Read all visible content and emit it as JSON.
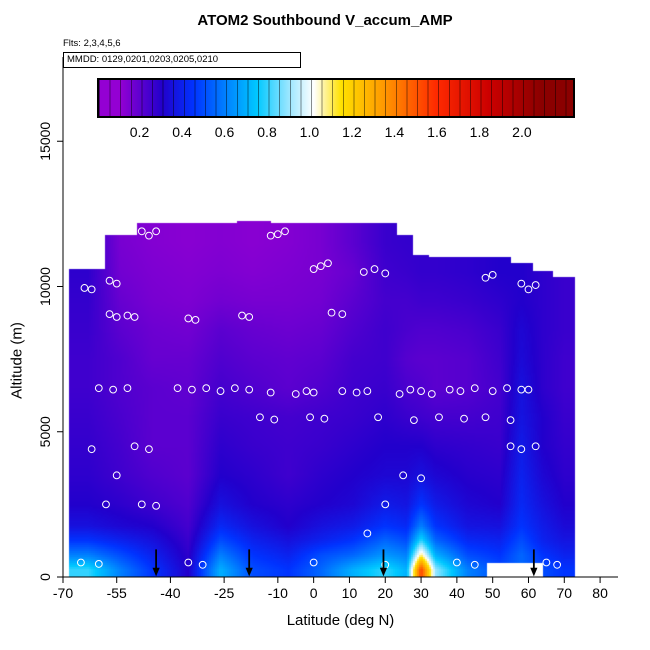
{
  "chart_data": {
    "type": "heatmap",
    "title": "ATOM2 Southbound V_accum_AMP",
    "flights_label": "Flts: 2,3,4,5,6",
    "mmdd_label": "MMDD: 0129,0201,0203,0205,0210",
    "xlabel": "Latitude (deg N)",
    "ylabel": "Altitude (m)",
    "x_ticks": [
      -70,
      -55,
      -40,
      -25,
      -10,
      0,
      10,
      20,
      30,
      40,
      50,
      60,
      70,
      80
    ],
    "y_ticks": [
      0,
      5000,
      10000,
      15000
    ],
    "xlim": [
      -70,
      85
    ],
    "ylim": [
      0,
      17900
    ],
    "colorbar": {
      "range": [
        0,
        2.25
      ],
      "tick_values": [
        0.2,
        0.4,
        0.6,
        0.8,
        1.0,
        1.2,
        1.4,
        1.6,
        1.8,
        2.0
      ],
      "tick_labels": [
        "0.2",
        "0.4",
        "0.6",
        "0.8",
        "1.0",
        "1.2",
        "1.4",
        "1.6",
        "1.8",
        "2.0"
      ],
      "stops": [
        [
          0.1,
          "#9400d3"
        ],
        [
          0.3,
          "#2200cc"
        ],
        [
          0.45,
          "#0033ff"
        ],
        [
          0.6,
          "#0080ff"
        ],
        [
          0.75,
          "#00c8ff"
        ],
        [
          0.9,
          "#99e6ff"
        ],
        [
          1.02,
          "#ffffff"
        ],
        [
          1.15,
          "#ffe100"
        ],
        [
          1.35,
          "#ff9900"
        ],
        [
          1.6,
          "#ff2a00"
        ],
        [
          1.85,
          "#cc0000"
        ],
        [
          2.1,
          "#8b0000"
        ]
      ]
    },
    "grid": {
      "lat_centers": [
        -63,
        -54,
        -45,
        -35,
        -26,
        -17,
        -7,
        2,
        11,
        20,
        26,
        30,
        34,
        43,
        52,
        58,
        64,
        70
      ],
      "alt_centers": [
        250,
        750,
        1250,
        1750,
        2500,
        3500,
        4500,
        5500,
        6500,
        7500,
        8500,
        9500,
        10500,
        11500
      ],
      "top_altitude": [
        10600,
        11800,
        12200,
        12200,
        12200,
        12250,
        12200,
        12200,
        12200,
        12200,
        11800,
        11100,
        11000,
        11000,
        11000,
        10800,
        10500,
        10300
      ],
      "lat_range": [
        -68.5,
        73
      ],
      "no_data_regions": [
        {
          "lat": [
            48.5,
            64
          ],
          "alt": [
            0,
            450
          ]
        }
      ],
      "values": [
        [
          0.8,
          0.6,
          0.45,
          0.3,
          0.7,
          0.5,
          0.45,
          0.55,
          0.7,
          0.8,
          0.7,
          1.55,
          0.9,
          0.6,
          0.5,
          0.55,
          0.5,
          0.45
        ],
        [
          0.6,
          0.5,
          0.4,
          0.28,
          0.6,
          0.45,
          0.4,
          0.5,
          0.55,
          0.65,
          0.6,
          1.1,
          0.7,
          0.5,
          0.45,
          0.55,
          0.45,
          0.4
        ],
        [
          0.45,
          0.4,
          0.35,
          0.26,
          0.5,
          0.4,
          0.35,
          0.4,
          0.45,
          0.55,
          0.5,
          0.8,
          0.55,
          0.42,
          0.4,
          0.5,
          0.4,
          0.36
        ],
        [
          0.35,
          0.32,
          0.3,
          0.24,
          0.42,
          0.35,
          0.3,
          0.35,
          0.38,
          0.45,
          0.42,
          0.6,
          0.45,
          0.36,
          0.35,
          0.45,
          0.38,
          0.33
        ],
        [
          0.3,
          0.28,
          0.25,
          0.22,
          0.35,
          0.3,
          0.28,
          0.3,
          0.32,
          0.38,
          0.36,
          0.45,
          0.38,
          0.32,
          0.3,
          0.42,
          0.35,
          0.3
        ],
        [
          0.28,
          0.25,
          0.22,
          0.2,
          0.3,
          0.28,
          0.25,
          0.28,
          0.3,
          0.32,
          0.32,
          0.35,
          0.32,
          0.29,
          0.28,
          0.4,
          0.32,
          0.28
        ],
        [
          0.27,
          0.24,
          0.2,
          0.2,
          0.28,
          0.26,
          0.25,
          0.26,
          0.28,
          0.3,
          0.3,
          0.3,
          0.28,
          0.27,
          0.26,
          0.38,
          0.3,
          0.27
        ],
        [
          0.26,
          0.23,
          0.2,
          0.2,
          0.26,
          0.25,
          0.24,
          0.25,
          0.26,
          0.28,
          0.26,
          0.25,
          0.24,
          0.24,
          0.25,
          0.36,
          0.3,
          0.26
        ],
        [
          0.25,
          0.22,
          0.2,
          0.19,
          0.24,
          0.22,
          0.2,
          0.22,
          0.25,
          0.26,
          0.23,
          0.22,
          0.2,
          0.21,
          0.24,
          0.35,
          0.28,
          0.25
        ],
        [
          0.25,
          0.22,
          0.18,
          0.18,
          0.22,
          0.2,
          0.19,
          0.2,
          0.24,
          0.25,
          0.21,
          0.2,
          0.2,
          0.21,
          0.25,
          0.33,
          0.28,
          0.25
        ],
        [
          0.26,
          0.2,
          0.17,
          0.16,
          0.2,
          0.18,
          0.17,
          0.18,
          0.22,
          0.25,
          0.23,
          0.22,
          0.22,
          0.23,
          0.26,
          0.32,
          0.28,
          0.26
        ],
        [
          0.27,
          0.18,
          0.15,
          0.14,
          0.16,
          0.15,
          0.15,
          0.16,
          0.2,
          0.24,
          0.24,
          0.25,
          0.25,
          0.26,
          0.28,
          0.3,
          0.28,
          0.26
        ],
        [
          0.28,
          0.16,
          0.14,
          0.13,
          0.14,
          0.13,
          0.14,
          0.15,
          0.18,
          0.25,
          0.26,
          0.27,
          0.27,
          0.28,
          0.3,
          0.3,
          0.28,
          0.26
        ],
        [
          0.28,
          0.15,
          0.13,
          0.12,
          0.13,
          0.12,
          0.13,
          0.15,
          0.2,
          0.26,
          0.27,
          0.27,
          0.27,
          0.28,
          0.3,
          0.3,
          0.28,
          0.26
        ]
      ]
    },
    "markers": [
      [
        -64,
        9950
      ],
      [
        -62,
        9900
      ],
      [
        -57,
        10200
      ],
      [
        -55,
        10100
      ],
      [
        -48,
        11900
      ],
      [
        -46,
        11750
      ],
      [
        -44,
        11900
      ],
      [
        -57,
        9050
      ],
      [
        -55,
        8950
      ],
      [
        -52,
        9000
      ],
      [
        -50,
        8950
      ],
      [
        -60,
        6500
      ],
      [
        -56,
        6450
      ],
      [
        -52,
        6500
      ],
      [
        -62,
        4400
      ],
      [
        -58,
        2500
      ],
      [
        -60,
        450
      ],
      [
        -65,
        500
      ],
      [
        -50,
        4500
      ],
      [
        -46,
        4400
      ],
      [
        -55,
        3500
      ],
      [
        -48,
        2500
      ],
      [
        -44,
        2450
      ],
      [
        -35,
        8900
      ],
      [
        -33,
        8850
      ],
      [
        -38,
        6500
      ],
      [
        -34,
        6450
      ],
      [
        -30,
        6500
      ],
      [
        -26,
        6400
      ],
      [
        -35,
        500
      ],
      [
        -31,
        420
      ],
      [
        -20,
        9000
      ],
      [
        -18,
        8950
      ],
      [
        -22,
        6500
      ],
      [
        -18,
        6450
      ],
      [
        -12,
        6350
      ],
      [
        -15,
        5500
      ],
      [
        -11,
        5420
      ],
      [
        -10,
        11800
      ],
      [
        -8,
        11900
      ],
      [
        -12,
        11750
      ],
      [
        -5,
        6300
      ],
      [
        -2,
        6400
      ],
      [
        0,
        6350
      ],
      [
        -1,
        5500
      ],
      [
        3,
        5450
      ],
      [
        2,
        10700
      ],
      [
        4,
        10800
      ],
      [
        0,
        10600
      ],
      [
        5,
        9100
      ],
      [
        8,
        9050
      ],
      [
        8,
        6400
      ],
      [
        12,
        6350
      ],
      [
        15,
        6400
      ],
      [
        14,
        10500
      ],
      [
        17,
        10600
      ],
      [
        20,
        10450
      ],
      [
        18,
        5500
      ],
      [
        15,
        1500
      ],
      [
        20,
        2500
      ],
      [
        0,
        500
      ],
      [
        20,
        420
      ],
      [
        24,
        6300
      ],
      [
        27,
        6450
      ],
      [
        30,
        6400
      ],
      [
        33,
        6300
      ],
      [
        25,
        3500
      ],
      [
        30,
        3400
      ],
      [
        28,
        5400
      ],
      [
        35,
        5500
      ],
      [
        38,
        6450
      ],
      [
        41,
        6400
      ],
      [
        45,
        6500
      ],
      [
        42,
        5450
      ],
      [
        48,
        5500
      ],
      [
        40,
        500
      ],
      [
        45,
        420
      ],
      [
        48,
        10300
      ],
      [
        50,
        10400
      ],
      [
        50,
        6400
      ],
      [
        54,
        6500
      ],
      [
        58,
        6450
      ],
      [
        60,
        6450
      ],
      [
        55,
        5400
      ],
      [
        55,
        4500
      ],
      [
        58,
        4400
      ],
      [
        62,
        4500
      ],
      [
        58,
        10100
      ],
      [
        60,
        9900
      ],
      [
        62,
        10050
      ],
      [
        65,
        500
      ],
      [
        68,
        420
      ]
    ],
    "arrows": [
      -44,
      -18,
      19.5,
      61.5
    ]
  }
}
